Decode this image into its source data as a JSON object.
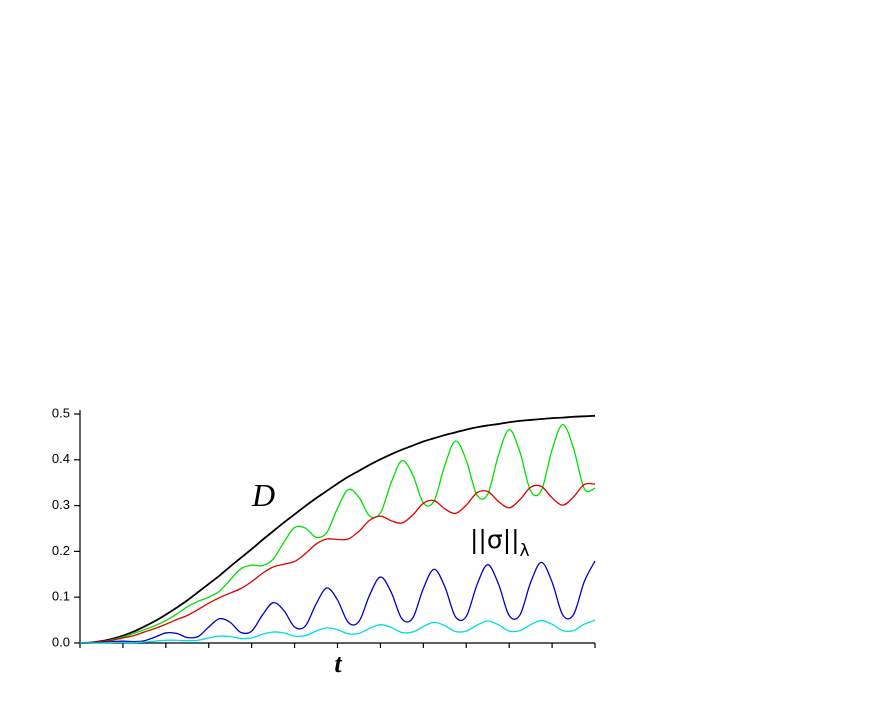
{
  "chart_data": {
    "type": "line",
    "x_label": "t",
    "annotations": [
      {
        "text": "D"
      },
      {
        "text": "||σ||",
        "subscript": "λ"
      }
    ],
    "x": [
      0,
      0.25,
      0.5,
      0.75,
      1,
      1.25,
      1.5,
      1.75,
      2,
      2.25,
      2.5,
      2.75,
      3,
      3.25,
      3.5,
      3.75,
      4,
      4.25,
      4.5,
      4.75,
      5,
      5.25,
      5.5,
      5.75,
      6,
      6.25,
      6.5,
      6.75,
      7,
      7.25,
      7.5,
      7.75,
      8,
      8.25,
      8.5,
      8.75,
      9,
      9.25,
      9.5,
      9.75,
      10,
      10.25,
      10.5,
      10.75,
      11,
      11.25,
      11.5,
      11.75,
      12
    ],
    "xlim": [
      0,
      12
    ],
    "xticks": [
      0,
      1,
      2,
      3,
      4,
      5,
      6,
      7,
      8,
      9,
      10,
      11,
      12
    ],
    "ylim": [
      0,
      0.5
    ],
    "yticks": [
      {
        "value": 0,
        "label": "0.0"
      },
      0.1,
      0.2,
      0.3,
      0.4,
      0.5
    ],
    "series": [
      {
        "name": "D",
        "color": "#000000",
        "values": [
          0,
          0.001,
          0.004,
          0.009,
          0.016,
          0.025,
          0.036,
          0.048,
          0.062,
          0.077,
          0.093,
          0.111,
          0.129,
          0.147,
          0.167,
          0.186,
          0.205,
          0.225,
          0.244,
          0.263,
          0.281,
          0.299,
          0.316,
          0.332,
          0.348,
          0.363,
          0.376,
          0.389,
          0.401,
          0.412,
          0.422,
          0.431,
          0.44,
          0.447,
          0.454,
          0.46,
          0.466,
          0.471,
          0.475,
          0.478,
          0.482,
          0.485,
          0.487,
          0.489,
          0.491,
          0.492,
          0.494,
          0.495,
          0.496
        ]
      },
      {
        "color": "#00e000",
        "values": [
          0,
          0.001,
          0.003,
          0.007,
          0.013,
          0.021,
          0.029,
          0.038,
          0.049,
          0.063,
          0.079,
          0.091,
          0.1,
          0.113,
          0.138,
          0.162,
          0.17,
          0.169,
          0.183,
          0.22,
          0.252,
          0.251,
          0.231,
          0.241,
          0.294,
          0.335,
          0.318,
          0.277,
          0.284,
          0.35,
          0.398,
          0.368,
          0.306,
          0.31,
          0.388,
          0.441,
          0.399,
          0.323,
          0.325,
          0.41,
          0.466,
          0.417,
          0.332,
          0.333,
          0.422,
          0.477,
          0.425,
          0.337,
          0.338
        ]
      },
      {
        "color": "#e00000",
        "values": [
          0,
          0.001,
          0.003,
          0.006,
          0.011,
          0.016,
          0.024,
          0.032,
          0.041,
          0.051,
          0.06,
          0.073,
          0.087,
          0.099,
          0.109,
          0.119,
          0.134,
          0.152,
          0.166,
          0.172,
          0.178,
          0.195,
          0.216,
          0.227,
          0.226,
          0.227,
          0.244,
          0.268,
          0.277,
          0.267,
          0.262,
          0.279,
          0.305,
          0.311,
          0.293,
          0.283,
          0.301,
          0.328,
          0.331,
          0.309,
          0.295,
          0.313,
          0.34,
          0.342,
          0.317,
          0.301,
          0.319,
          0.346,
          0.347
        ]
      },
      {
        "color": "#0000cc",
        "values": [
          0,
          0,
          0.001,
          0.003,
          0.004,
          0.003,
          0.005,
          0.013,
          0.022,
          0.021,
          0.012,
          0.014,
          0.035,
          0.053,
          0.045,
          0.023,
          0.026,
          0.061,
          0.088,
          0.071,
          0.035,
          0.037,
          0.085,
          0.12,
          0.094,
          0.045,
          0.047,
          0.105,
          0.144,
          0.111,
          0.053,
          0.054,
          0.119,
          0.161,
          0.123,
          0.057,
          0.058,
          0.127,
          0.171,
          0.129,
          0.06,
          0.061,
          0.132,
          0.176,
          0.133,
          0.061,
          0.062,
          0.134,
          0.179
        ]
      },
      {
        "color": "#00dddd",
        "values": [
          0,
          0,
          0,
          0.001,
          0.001,
          0.001,
          0.002,
          0.004,
          0.006,
          0.006,
          0.005,
          0.006,
          0.011,
          0.015,
          0.014,
          0.01,
          0.011,
          0.019,
          0.024,
          0.022,
          0.015,
          0.016,
          0.026,
          0.033,
          0.029,
          0.02,
          0.021,
          0.032,
          0.04,
          0.034,
          0.023,
          0.024,
          0.036,
          0.045,
          0.038,
          0.025,
          0.026,
          0.039,
          0.048,
          0.04,
          0.026,
          0.027,
          0.04,
          0.049,
          0.041,
          0.027,
          0.027,
          0.041,
          0.05
        ]
      }
    ]
  }
}
